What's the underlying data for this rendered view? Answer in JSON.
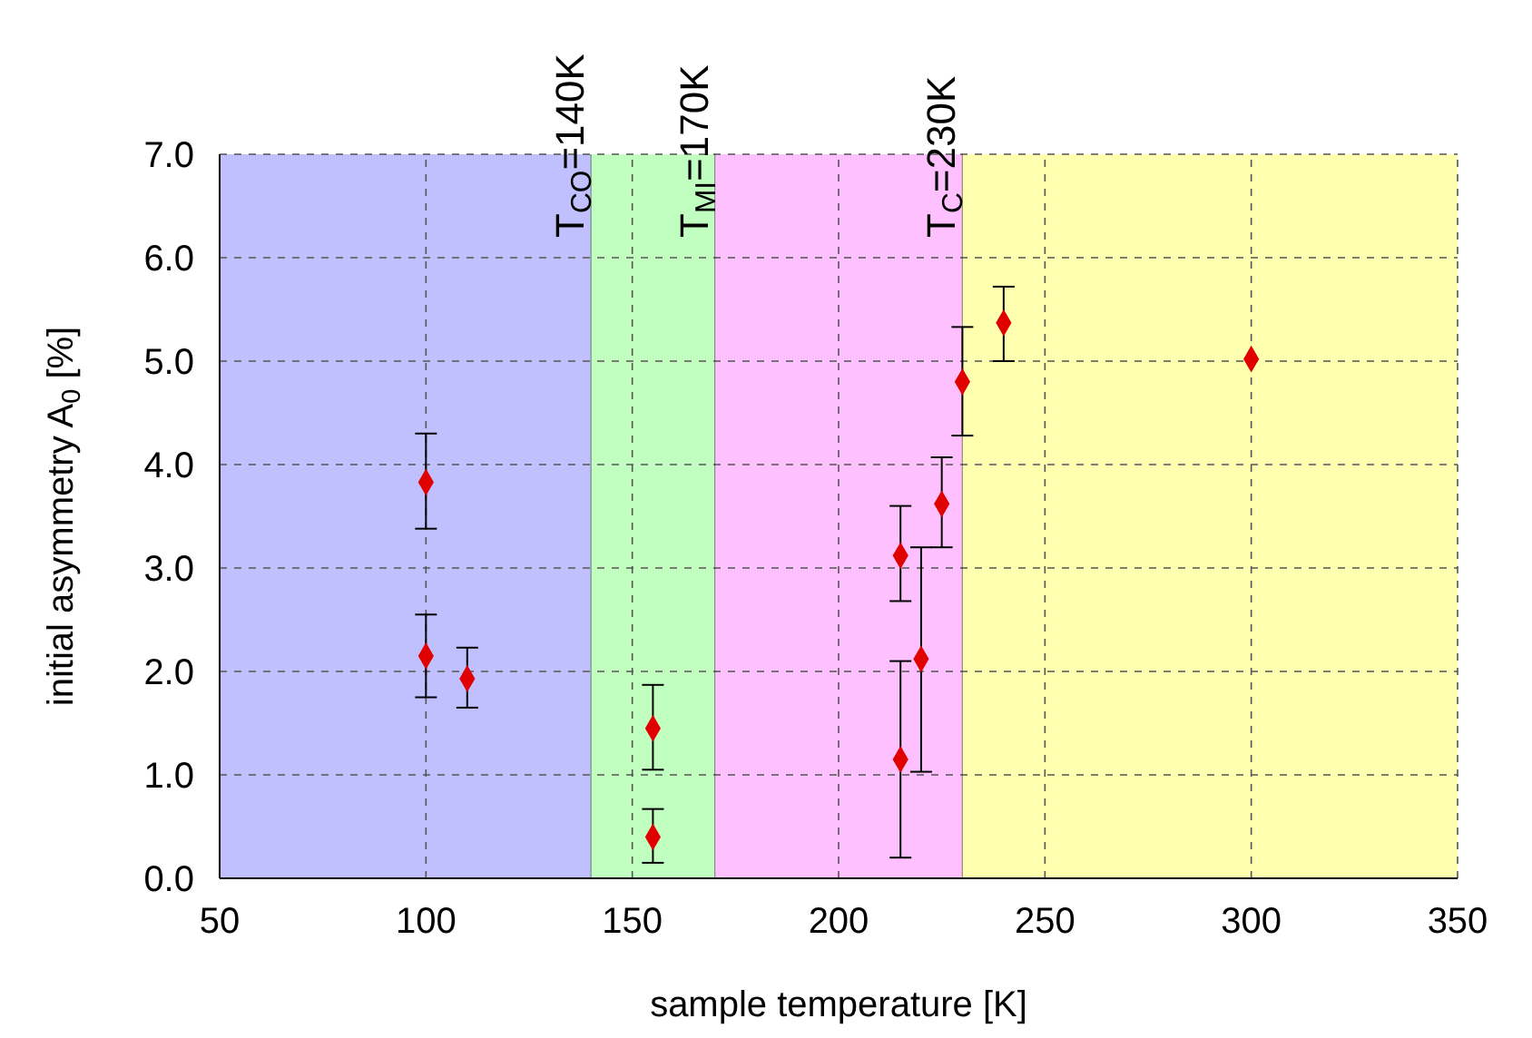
{
  "chart_data": {
    "type": "scatter",
    "xlabel": "sample temperature [K]",
    "ylabel": "initial asymmetry A$_{0}$ [%]",
    "x": [
      100,
      100,
      110,
      155,
      155,
      215,
      215,
      220,
      225,
      230,
      240,
      300
    ],
    "values": [
      3.83,
      2.15,
      1.93,
      1.45,
      0.4,
      3.12,
      1.15,
      2.12,
      3.62,
      4.8,
      5.37,
      5.02
    ],
    "errors": [
      [
        3.38,
        4.3
      ],
      [
        1.75,
        2.55
      ],
      [
        1.65,
        2.23
      ],
      [
        1.05,
        1.87
      ],
      [
        0.15,
        0.67
      ],
      [
        2.68,
        3.6
      ],
      [
        0.2,
        2.1
      ],
      [
        1.03,
        3.2
      ],
      [
        3.2,
        4.07
      ],
      [
        4.28,
        5.33
      ],
      [
        5.0,
        5.72
      ],
      null
    ],
    "color": "#e00000",
    "marker": "diamond",
    "xlim": [
      50,
      350
    ],
    "xticks": [
      50,
      100,
      150,
      200,
      250,
      300,
      350
    ],
    "ylim": [
      0,
      7
    ],
    "yticks": [
      {
        "value": 0,
        "label": "0.0"
      },
      {
        "value": 1,
        "label": "1.0"
      },
      {
        "value": 2,
        "label": "2.0"
      },
      {
        "value": 3,
        "label": "3.0"
      },
      {
        "value": 4,
        "label": "4.0"
      },
      {
        "value": 5,
        "label": "5.0"
      },
      {
        "value": 6,
        "label": "6.0"
      },
      {
        "value": 7,
        "label": "7.0"
      }
    ],
    "grid": true,
    "bands": [
      {
        "axis": "x",
        "from": 50,
        "to": 140,
        "color": "#c0c0ff"
      },
      {
        "axis": "x",
        "from": 140,
        "to": 170,
        "color": "#c0ffc0"
      },
      {
        "axis": "x",
        "from": 170,
        "to": 230,
        "color": "#ffc0ff"
      },
      {
        "axis": "x",
        "from": 230,
        "to": 350,
        "color": "#ffffb0"
      }
    ],
    "ref_lines": [
      {
        "axis": "x",
        "value": 140,
        "label": "T$_{CO}$=140K",
        "color": "#000000"
      },
      {
        "axis": "x",
        "value": 170,
        "label": "T$_{MI}$=170K",
        "color": "#000000"
      },
      {
        "axis": "x",
        "value": 230,
        "label": "T$_{C}$=230K",
        "color": "#000000"
      }
    ]
  }
}
